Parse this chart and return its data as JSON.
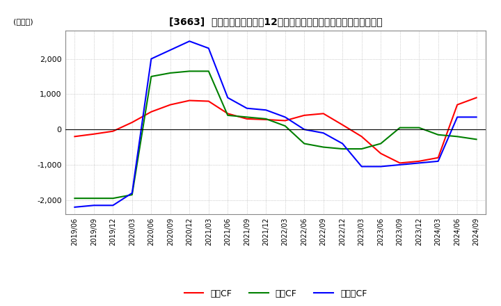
{
  "title": "[3663]  キャッシュフローの12か月移動合計の対前年同期増減額の推移",
  "ylabel": "(百万円)",
  "ylim": [
    -2400,
    2800
  ],
  "yticks": [
    -2000,
    -1000,
    0,
    1000,
    2000
  ],
  "legend_labels": [
    "営業CF",
    "投資CF",
    "フリーCF"
  ],
  "colors": {
    "eigyo": "#ff0000",
    "toshi": "#008000",
    "free": "#0000ff"
  },
  "dates": [
    "2019/06",
    "2019/09",
    "2019/12",
    "2020/03",
    "2020/06",
    "2020/09",
    "2020/12",
    "2021/03",
    "2021/06",
    "2021/09",
    "2021/12",
    "2022/03",
    "2022/06",
    "2022/09",
    "2022/12",
    "2023/03",
    "2023/06",
    "2023/09",
    "2023/12",
    "2024/03",
    "2024/06",
    "2024/09"
  ],
  "eigyo": [
    -200,
    -130,
    -50,
    200,
    500,
    700,
    820,
    800,
    450,
    300,
    280,
    250,
    400,
    450,
    130,
    -200,
    -680,
    -950,
    -900,
    -800,
    700,
    900
  ],
  "toshi": [
    -1950,
    -1950,
    -1950,
    -1850,
    1500,
    1600,
    1650,
    1650,
    400,
    350,
    300,
    100,
    -400,
    -500,
    -550,
    -550,
    -400,
    50,
    50,
    -150,
    -200,
    -280
  ],
  "free": [
    -2200,
    -2150,
    -2150,
    -1800,
    2000,
    2250,
    2500,
    2300,
    900,
    600,
    550,
    350,
    0,
    -100,
    -400,
    -1050,
    -1050,
    -1000,
    -950,
    -900,
    350,
    350
  ]
}
